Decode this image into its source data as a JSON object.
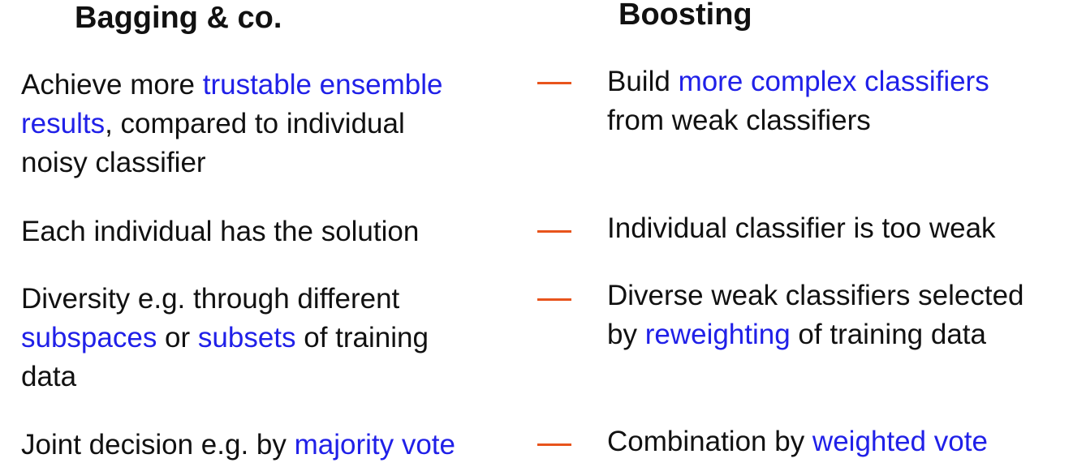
{
  "colors": {
    "highlight": "#2020e8",
    "dash": "#e8541c",
    "text": "#111111"
  },
  "headings": {
    "left": "Bagging & co.",
    "right": "Boosting"
  },
  "separator": "—",
  "rows": [
    {
      "left": [
        [
          "Achieve more ",
          "trustable ensemble"
        ],
        [
          "results",
          ", compared to individual"
        ],
        [
          "noisy classifier"
        ]
      ],
      "right": [
        [
          "Build ",
          "more complex classifiers"
        ],
        [
          "from weak classifiers"
        ]
      ]
    },
    {
      "left": [
        [
          "Each individual has the solution"
        ]
      ],
      "right": [
        [
          "Individual classifier is too weak"
        ]
      ]
    },
    {
      "left": [
        [
          "Diversity e.g. through different"
        ],
        [
          "subspaces",
          " or ",
          "subsets",
          " of training"
        ],
        [
          "data"
        ]
      ],
      "right": [
        [
          "Diverse weak classifiers selected"
        ],
        [
          "by ",
          "reweighting",
          " of training data"
        ]
      ]
    },
    {
      "left": [
        [
          "Joint decision e.g. by ",
          "majority vote"
        ]
      ],
      "right": [
        [
          "Combination by ",
          "weighted vote"
        ]
      ]
    }
  ]
}
